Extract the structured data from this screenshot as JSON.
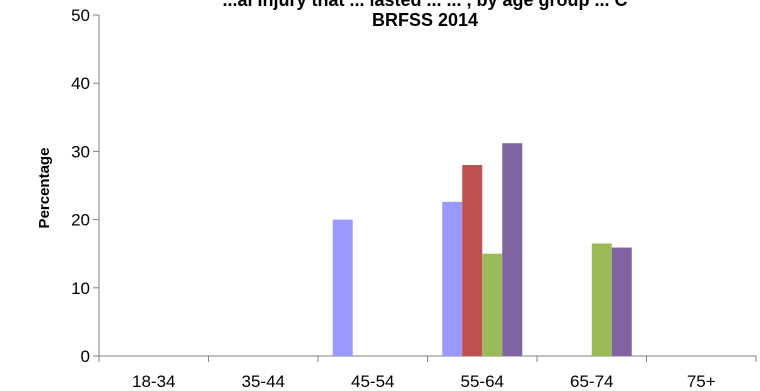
{
  "chart_data": {
    "type": "bar",
    "title_line1": "...al Injury that ... lasted ... ... , by age group ... C",
    "title_line2": "BRFSS 2014",
    "ylabel": "Percentage",
    "xlabel": "",
    "ylim": [
      0,
      50
    ],
    "yticks": [
      0,
      10,
      20,
      30,
      40,
      50
    ],
    "categories": [
      "18-34",
      "35-44",
      "45-54",
      "55-64",
      "65-74",
      "75+"
    ],
    "series": [
      {
        "color": "#9999FF",
        "values": [
          null,
          null,
          20.0,
          22.6,
          null,
          null
        ]
      },
      {
        "color": "#C0504D",
        "values": [
          null,
          null,
          null,
          28.0,
          null,
          null
        ]
      },
      {
        "color": "#9BBB59",
        "values": [
          null,
          null,
          null,
          15.0,
          16.5,
          null
        ]
      },
      {
        "color": "#8064A2",
        "values": [
          null,
          null,
          null,
          31.2,
          15.9,
          null
        ]
      }
    ],
    "grid": false,
    "legend": "none"
  }
}
